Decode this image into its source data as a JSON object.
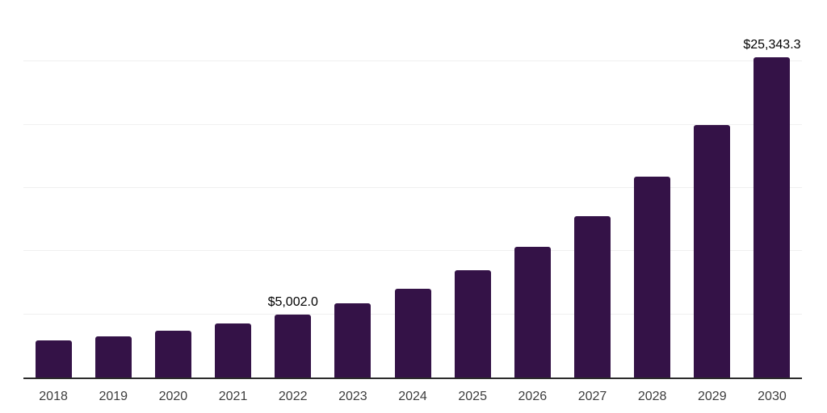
{
  "chart_data": {
    "type": "bar",
    "title": "",
    "xlabel": "",
    "ylabel": "",
    "categories": [
      "2018",
      "2019",
      "2020",
      "2021",
      "2022",
      "2023",
      "2024",
      "2025",
      "2026",
      "2027",
      "2028",
      "2029",
      "2030"
    ],
    "values": [
      2940,
      3260,
      3690,
      4265,
      5002.0,
      5860,
      7030,
      8480,
      10350,
      12750,
      15900,
      19970,
      25343.3
    ],
    "value_labels": [
      "",
      "",
      "",
      "",
      "$5,002.0",
      "",
      "",
      "",
      "",
      "",
      "",
      "",
      "$25,343.3"
    ],
    "labeled_points": {
      "2022": "$5,002.0",
      "2030": "$25,343.3"
    },
    "ylim": [
      0,
      30000
    ],
    "gridline_values": [
      5000,
      10000,
      15000,
      20000,
      25000,
      30000
    ],
    "grid": true,
    "legend": false,
    "colors": {
      "bar": "#341247",
      "axis": "#2b2b2b",
      "gridline": "#f0f0f0",
      "data_label": "#000000",
      "tick_label": "#3c3c3c",
      "background": "#ffffff"
    }
  }
}
